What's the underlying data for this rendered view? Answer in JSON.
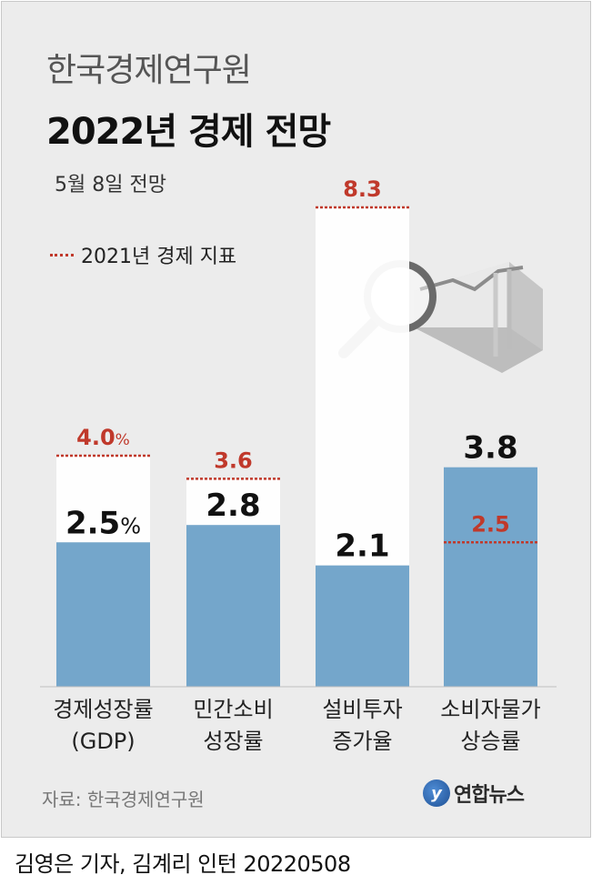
{
  "header": {
    "org": "한국경제연구원",
    "title": "2022년 경제 전망",
    "subtitle": "5월 8일 전망"
  },
  "legend": {
    "label": "2021년 경제 지표",
    "color": "#c0392b"
  },
  "footer": {
    "source": "자료: 한국경제연구원",
    "logo_text": "연합뉴스",
    "logo_mark": "y",
    "byline": "김영은 기자, 김계리 인턴  20220508"
  },
  "colors": {
    "bar": "#74a6cb",
    "previous_fill": "#ffffff",
    "previous_line": "#c0392b",
    "value_text": "#111111",
    "previous_text": "#c0392b"
  },
  "icons": [
    "magnifier-icon",
    "rising-chart-icon",
    "yonhap-logo-icon"
  ],
  "chart_data": {
    "type": "bar",
    "categories": [
      [
        "경제성장률",
        "(GDP)"
      ],
      [
        "민간소비",
        "성장률"
      ],
      [
        "설비투자",
        "증가율"
      ],
      [
        "소비자물가",
        "상승률"
      ]
    ],
    "series": [
      {
        "name": "2022년 전망",
        "values": [
          2.5,
          2.8,
          2.1,
          3.8
        ]
      },
      {
        "name": "2021년 경제 지표",
        "values": [
          4.0,
          3.6,
          8.3,
          2.5
        ]
      }
    ],
    "value_labels": [
      "2.5%",
      "2.8",
      "2.1",
      "3.8"
    ],
    "previous_labels": [
      "4.0%",
      "3.6",
      "8.3",
      "2.5"
    ],
    "unit": "%",
    "ylim": [
      0,
      8.3
    ]
  }
}
